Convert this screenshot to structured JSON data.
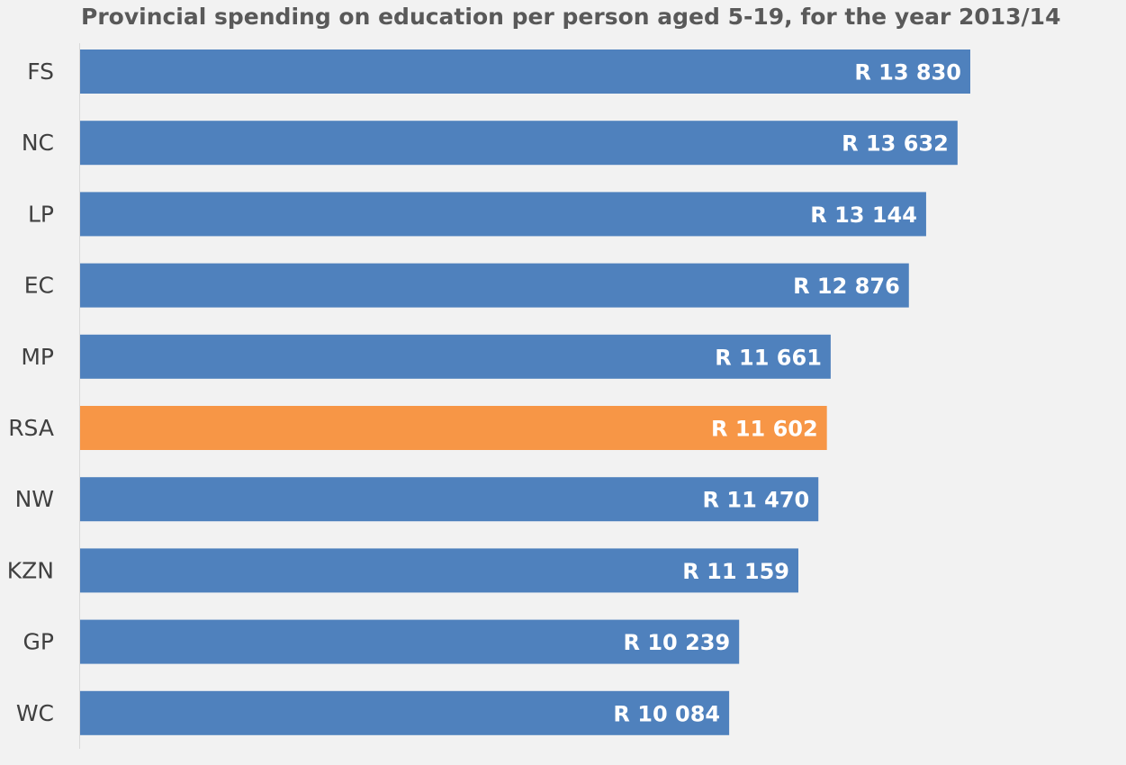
{
  "chart_data": {
    "type": "bar",
    "orientation": "horizontal",
    "title": "Provincial spending on education per person aged 5-19, for the year 2013/14",
    "xlabel": "",
    "ylabel": "",
    "xlim": [
      0,
      13830
    ],
    "grid": false,
    "legend": "none",
    "categories": [
      "FS",
      "NC",
      "LP",
      "EC",
      "MP",
      "RSA",
      "NW",
      "KZN",
      "GP",
      "WC"
    ],
    "values": [
      13830,
      13632,
      13144,
      12876,
      11661,
      11602,
      11470,
      11159,
      10239,
      10084
    ],
    "data_labels": [
      "R 13 830",
      "R 13 632",
      "R 13 144",
      "R 12 876",
      "R 11 661",
      "R 11 602",
      "R 11 470",
      "R 11 159",
      "R 10 239",
      "R 10 084"
    ],
    "highlight_category": "RSA",
    "colors": {
      "default": "#4f81bd",
      "highlight": "#f79646",
      "background": "#f2f2f2",
      "axis": "#d9d9d9"
    }
  }
}
